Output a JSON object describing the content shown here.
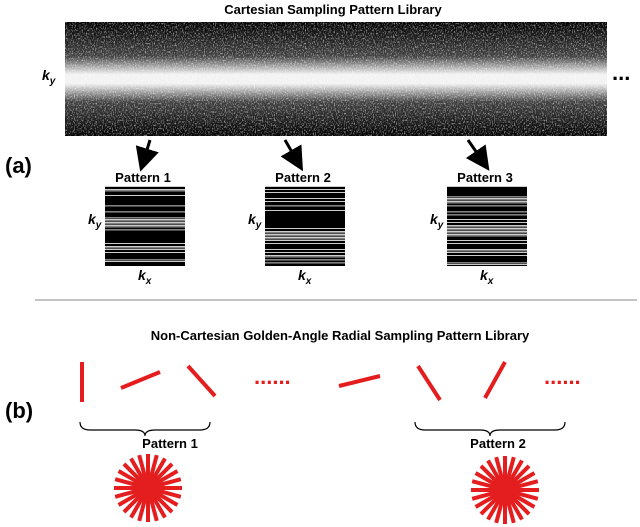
{
  "section_a": {
    "title": "Cartesian Sampling Pattern Library",
    "label": "(a)",
    "axis_main": "k",
    "axis_y_sub": "y",
    "axis_x_sub": "x",
    "ellipsis": "...",
    "patterns": [
      "Pattern 1",
      "Pattern 2",
      "Pattern 3"
    ]
  },
  "section_b": {
    "title": "Non-Cartesian Golden-Angle Radial Sampling Pattern Library",
    "label": "(b)",
    "ellipsis": "......",
    "patterns": [
      "Pattern 1",
      "Pattern 2"
    ]
  }
}
